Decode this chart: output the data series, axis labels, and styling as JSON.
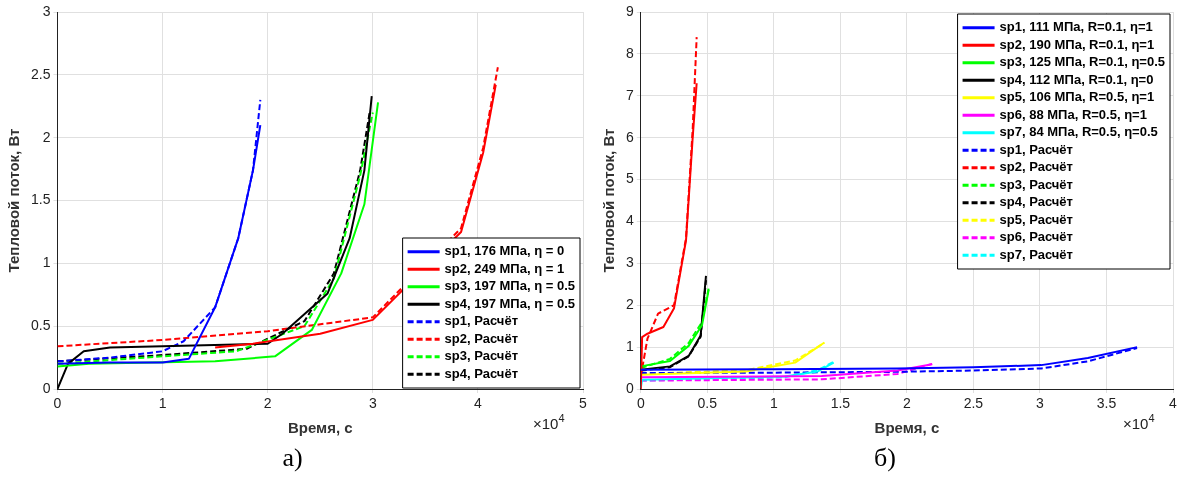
{
  "chart_data": [
    {
      "type": "line",
      "title": "а)",
      "xlabel": "Время, с",
      "ylabel": "Тепловой поток, Вт",
      "annotations": [
        "×10$^{4}$"
      ],
      "xlim": [
        0,
        5
      ],
      "xticks": [
        0,
        1,
        2,
        3,
        4,
        5
      ],
      "ylim": [
        0,
        3
      ],
      "yticks": [
        0,
        0.5,
        1,
        1.5,
        2,
        2.5,
        3
      ],
      "grid": true,
      "legend": "bottom right",
      "series": [
        {
          "name": "sp1, 176 МПа, η = 0",
          "color": "#0000ff",
          "line_style": "solid",
          "x": [
            0,
            0.5,
            1,
            1.25,
            1.5,
            1.72,
            1.86,
            1.93
          ],
          "values": [
            0.2,
            0.21,
            0.21,
            0.24,
            0.65,
            1.2,
            1.74,
            2.1
          ]
        },
        {
          "name": "sp2, 249 МПа, η = 1",
          "color": "#ff0000",
          "line_style": "solid",
          "x": [
            1.5,
            1.86,
            2.5,
            3.0,
            3.84,
            4.05,
            4.17
          ],
          "values": [
            0.33,
            0.36,
            0.44,
            0.55,
            1.25,
            1.88,
            2.42
          ]
        },
        {
          "name": "sp3, 197 МПа, η = 0.5",
          "color": "#00ff00",
          "line_style": "solid",
          "x": [
            0,
            0.3,
            1.5,
            2.07,
            2.42,
            2.7,
            2.92,
            3.05
          ],
          "values": [
            0.18,
            0.2,
            0.22,
            0.26,
            0.47,
            0.92,
            1.47,
            2.28
          ]
        },
        {
          "name": "sp4, 197 МПа, η = 0.5",
          "color": "#000000",
          "line_style": "solid",
          "x": [
            0,
            0.1,
            0.25,
            0.5,
            1,
            2,
            2.14,
            2.57,
            2.78,
            2.92,
            2.99
          ],
          "values": [
            0,
            0.2,
            0.3,
            0.33,
            0.34,
            0.36,
            0.44,
            0.76,
            1.2,
            1.74,
            2.33
          ]
        },
        {
          "name": "sp1, Расчёт",
          "color": "#0000ff",
          "line_style": "dashed",
          "x": [
            0,
            0.5,
            1,
            1.2,
            1.5,
            1.72,
            1.86,
            1.93
          ],
          "values": [
            0.22,
            0.25,
            0.3,
            0.38,
            0.65,
            1.2,
            1.74,
            2.3
          ]
        },
        {
          "name": "sp2, Расчёт",
          "color": "#ff0000",
          "line_style": "dashed",
          "x": [
            0,
            1,
            2,
            3,
            3.84,
            4.05,
            4.19
          ],
          "values": [
            0.34,
            0.39,
            0.46,
            0.57,
            1.28,
            1.92,
            2.56
          ]
        },
        {
          "name": "sp3, Расчёт",
          "color": "#00ff00",
          "line_style": "dashed",
          "x": [
            0,
            1,
            1.7,
            2.35,
            2.63,
            2.88,
            3.0
          ],
          "values": [
            0.2,
            0.26,
            0.3,
            0.5,
            0.88,
            1.7,
            2.2
          ]
        },
        {
          "name": "sp4, Расчёт",
          "color": "#000000",
          "line_style": "dashed",
          "x": [
            0,
            1,
            1.8,
            2.35,
            2.63,
            2.88,
            2.97
          ],
          "values": [
            0.22,
            0.27,
            0.32,
            0.54,
            0.92,
            1.74,
            2.2
          ]
        }
      ]
    },
    {
      "type": "line",
      "title": "б)",
      "xlabel": "Время, с",
      "ylabel": "Тепловой поток, Вт",
      "annotations": [
        "×10$^{4}$"
      ],
      "xlim": [
        0,
        4
      ],
      "xticks": [
        0,
        0.5,
        1,
        1.5,
        2,
        2.5,
        3,
        3.5,
        4
      ],
      "ylim": [
        0,
        9
      ],
      "yticks": [
        0,
        1,
        2,
        3,
        4,
        5,
        6,
        7,
        8,
        9
      ],
      "grid": true,
      "legend": "top right",
      "series": [
        {
          "name": "sp1, 111 МПа, R=0.1, η=1",
          "color": "#0000ff",
          "line_style": "solid",
          "x": [
            0,
            1,
            1.93,
            2.5,
            3.01,
            3.36,
            3.73
          ],
          "values": [
            0.46,
            0.47,
            0.49,
            0.52,
            0.57,
            0.74,
            1.0
          ]
        },
        {
          "name": "sp2, 190 МПа, R=0.1, η=1",
          "color": "#ff0000",
          "line_style": "solid",
          "x": [
            0,
            0.01,
            0.05,
            0.17,
            0.25,
            0.34,
            0.39,
            0.42
          ],
          "values": [
            0,
            1.24,
            1.32,
            1.48,
            1.93,
            3.55,
            6.0,
            7.3
          ]
        },
        {
          "name": "sp3, 125 МПа, R=0.1, η=0.5",
          "color": "#00ff00",
          "line_style": "solid",
          "x": [
            0,
            0.22,
            0.36,
            0.46,
            0.51
          ],
          "values": [
            0.54,
            0.67,
            1.03,
            1.52,
            2.37
          ]
        },
        {
          "name": "sp4, 112 МПа, R=0.1, η=0",
          "color": "#000000",
          "line_style": "solid",
          "x": [
            0,
            0.22,
            0.36,
            0.45,
            0.49
          ],
          "values": [
            0.46,
            0.54,
            0.79,
            1.28,
            2.7
          ]
        },
        {
          "name": "sp5, 106 МПа, R=0.5, η=1",
          "color": "#ffff00",
          "line_style": "solid",
          "x": [
            0,
            0.79,
            1.16,
            1.38
          ],
          "values": [
            0.34,
            0.42,
            0.63,
            1.11
          ]
        },
        {
          "name": "sp6, 88 МПа, R=0.5, η=1",
          "color": "#ff00ff",
          "line_style": "solid",
          "x": [
            0,
            1.36,
            1.93,
            2.19
          ],
          "values": [
            0.28,
            0.31,
            0.44,
            0.59
          ]
        },
        {
          "name": "sp7, 84 МПа, R=0.5, η=0.5",
          "color": "#00ffff",
          "line_style": "solid",
          "x": [
            0,
            0.01,
            1.08,
            1.33,
            1.45
          ],
          "values": [
            0.02,
            0.22,
            0.3,
            0.42,
            0.63
          ]
        },
        {
          "name": "sp1, Расчёт",
          "color": "#0000ff",
          "line_style": "dashed",
          "x": [
            0,
            1,
            1.93,
            2.5,
            3.01,
            3.36,
            3.73
          ],
          "values": [
            0.38,
            0.39,
            0.41,
            0.44,
            0.49,
            0.66,
            0.98
          ]
        },
        {
          "name": "sp2, Расчёт",
          "color": "#ff0000",
          "line_style": "dashed",
          "x": [
            0,
            0.05,
            0.13,
            0.25,
            0.34,
            0.39,
            0.42
          ],
          "values": [
            0.3,
            1.2,
            1.8,
            2.0,
            3.6,
            6.2,
            8.4
          ]
        },
        {
          "name": "sp3, Расчёт",
          "color": "#00ff00",
          "line_style": "dashed",
          "x": [
            0,
            0.22,
            0.36,
            0.46,
            0.51
          ],
          "values": [
            0.5,
            0.72,
            1.1,
            1.6,
            2.4
          ]
        },
        {
          "name": "sp4, Расчёт",
          "color": "#000000",
          "line_style": "dashed",
          "x": [
            0,
            0.22,
            0.36,
            0.45,
            0.49
          ],
          "values": [
            0.44,
            0.52,
            0.78,
            1.25,
            2.6
          ]
        },
        {
          "name": "sp5, Расчёт",
          "color": "#ffff00",
          "line_style": "dashed",
          "x": [
            0,
            0.79,
            1.16,
            1.38
          ],
          "values": [
            0.36,
            0.45,
            0.68,
            1.1
          ]
        },
        {
          "name": "sp6, Расчёт",
          "color": "#ff00ff",
          "line_style": "dashed",
          "x": [
            0,
            1.36,
            1.93,
            2.19
          ],
          "values": [
            0.2,
            0.23,
            0.36,
            0.6
          ]
        },
        {
          "name": "sp7, Расчёт",
          "color": "#00ffff",
          "line_style": "dashed",
          "x": [
            0,
            1.08,
            1.33,
            1.45
          ],
          "values": [
            0.2,
            0.28,
            0.45,
            0.65
          ]
        }
      ]
    }
  ]
}
